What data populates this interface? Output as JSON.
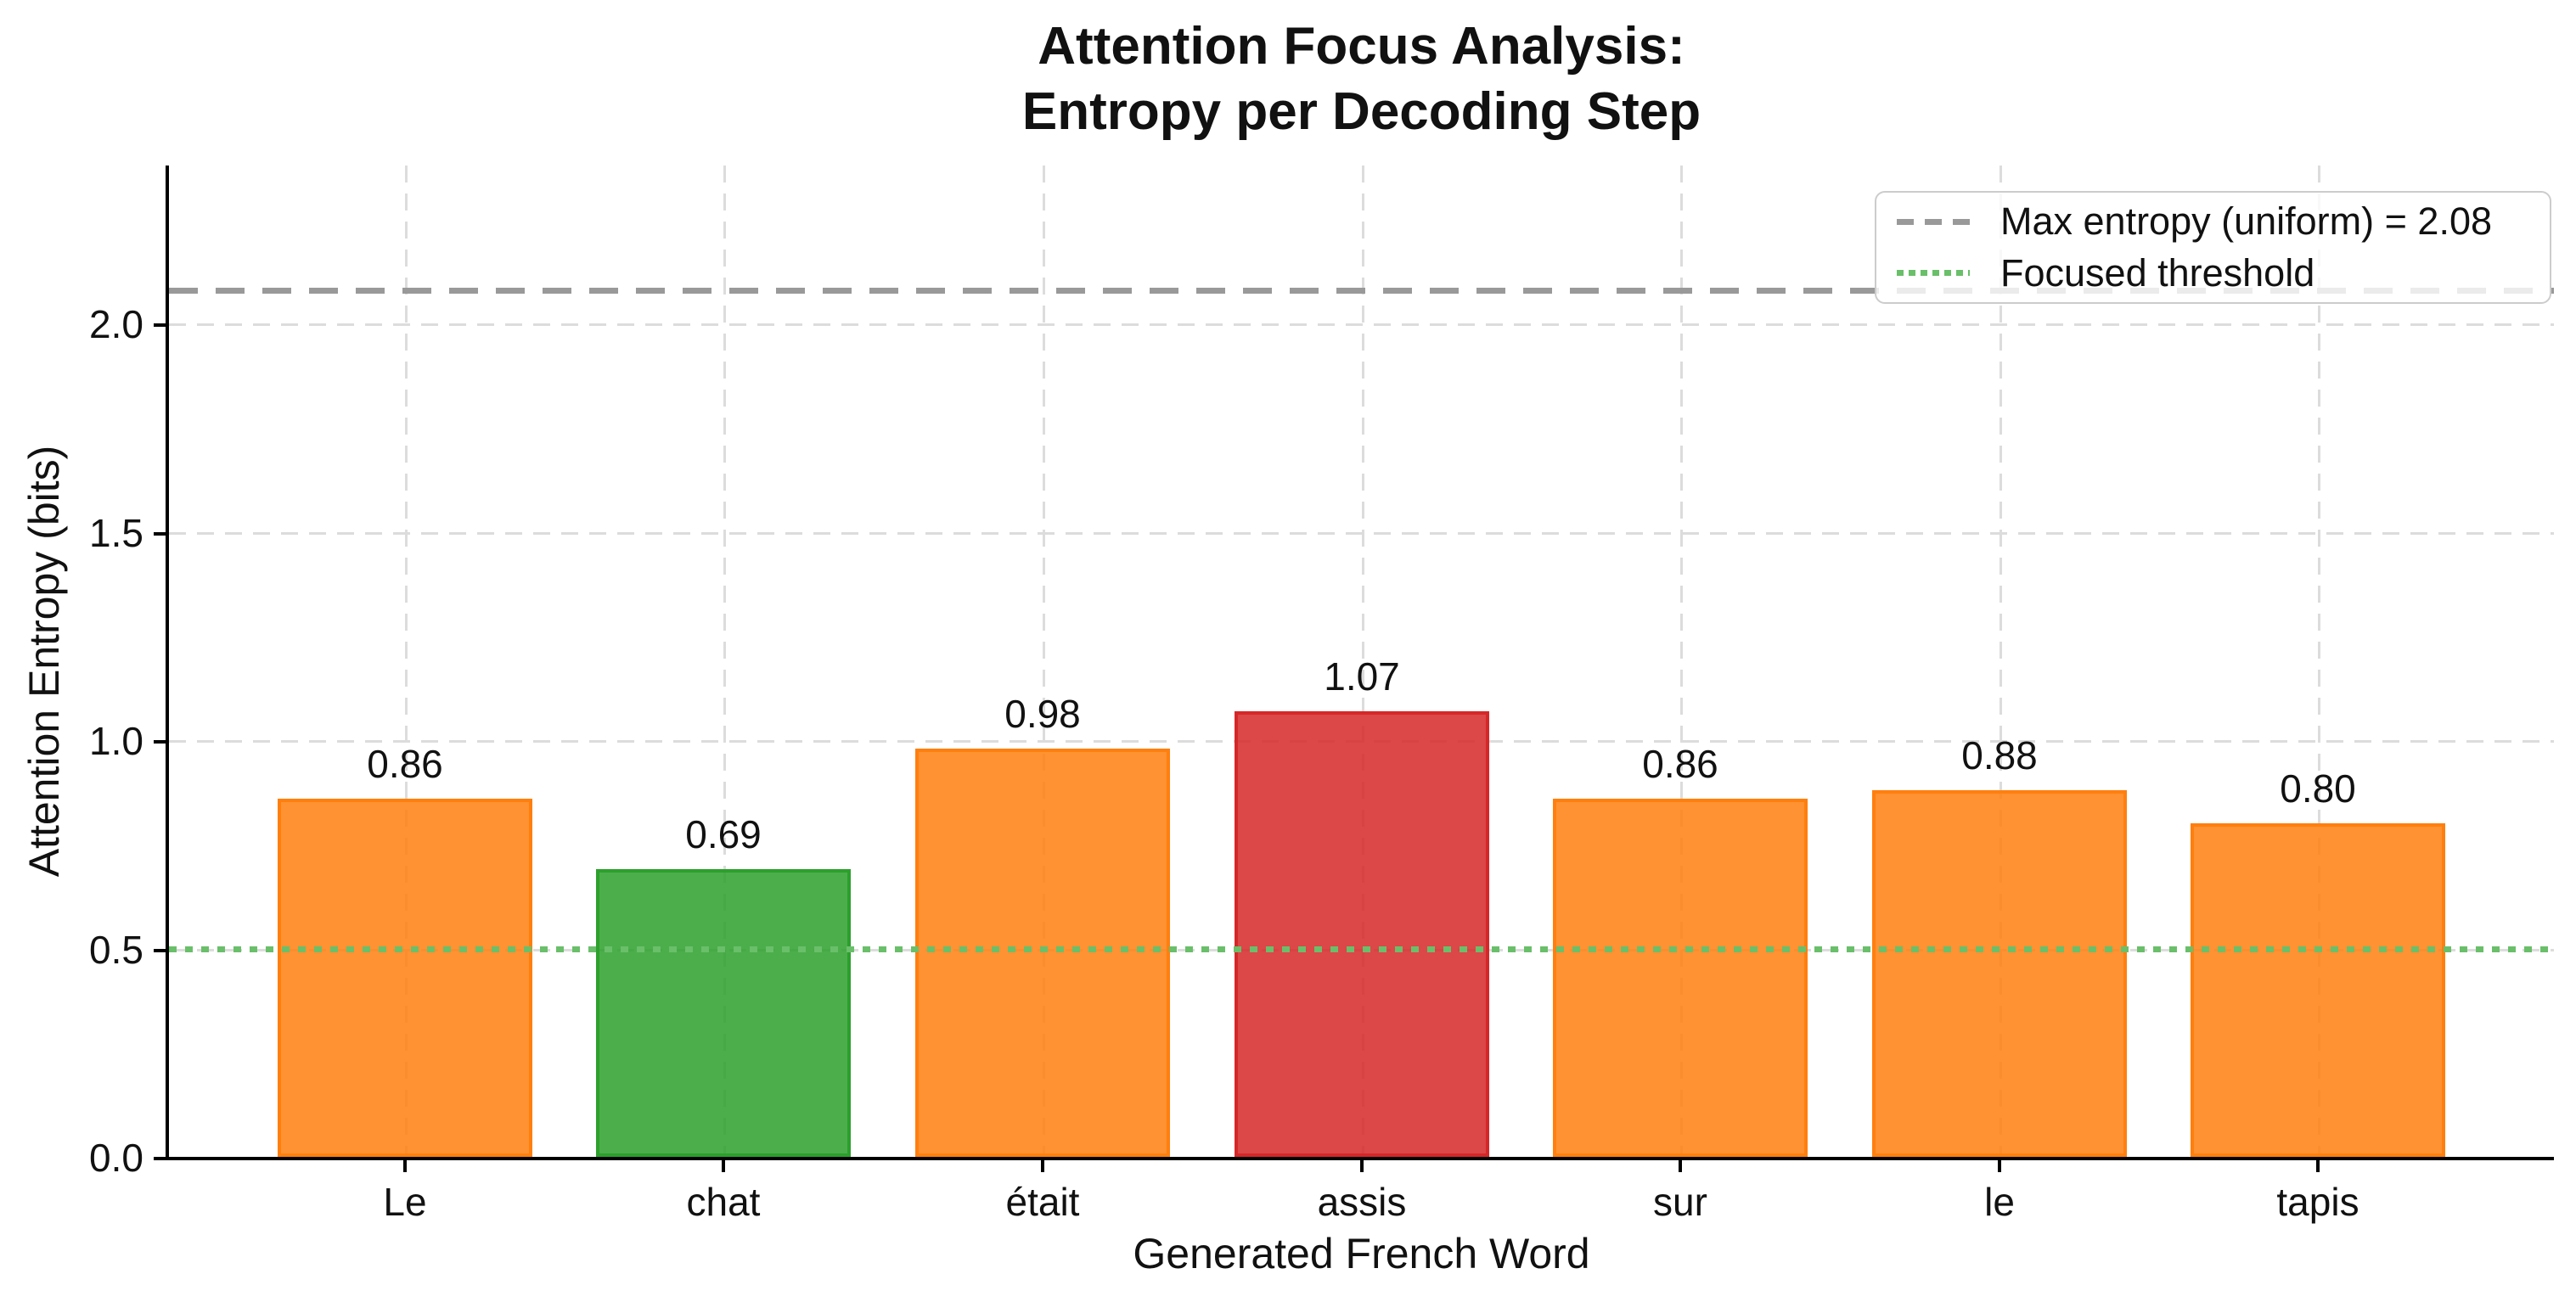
{
  "chart_data": {
    "type": "bar",
    "title_lines": [
      "Attention Focus Analysis:",
      "Entropy per Decoding Step"
    ],
    "xlabel": "Generated French Word",
    "ylabel": "Attention Entropy (bits)",
    "categories": [
      "Le",
      "chat",
      "était",
      "assis",
      "sur",
      "le",
      "tapis"
    ],
    "values": [
      0.86,
      0.69,
      0.98,
      1.07,
      0.86,
      0.88,
      0.8
    ],
    "bar_labels": [
      "0.86",
      "0.69",
      "0.98",
      "1.07",
      "0.86",
      "0.88",
      "0.80"
    ],
    "bar_color_keys": [
      "orange",
      "green",
      "orange",
      "red",
      "orange",
      "orange",
      "orange"
    ],
    "yticks": [
      0.0,
      0.5,
      1.0,
      1.5,
      2.0
    ],
    "ytick_labels": [
      "0.0",
      "0.5",
      "1.0",
      "1.5",
      "2.0"
    ],
    "ylim": [
      0,
      2.38
    ],
    "grid": true,
    "reference_lines": [
      {
        "value": 2.08,
        "style": "dashed",
        "color_key": "max_line",
        "name": "max-entropy-line"
      },
      {
        "value": 0.5,
        "style": "dotted",
        "color_key": "threshold_line",
        "name": "threshold-line"
      }
    ],
    "legend": {
      "position": "upper right",
      "entries": [
        {
          "label": "Max entropy (uniform) = 2.08",
          "style": "dashed",
          "color_key": "max_line"
        },
        {
          "label": "Focused threshold",
          "style": "dotted",
          "color_key": "threshold_line"
        }
      ]
    },
    "colors": {
      "orange_fill": "rgba(255,127,14,0.85)",
      "orange_edge": "#ff7f0e",
      "green_fill": "rgba(44,160,44,0.85)",
      "green_edge": "#2ca02c",
      "red_fill": "rgba(214,39,40,0.85)",
      "red_edge": "#d62728",
      "max_line": "#999999",
      "threshold_line": "#6abf6a",
      "grid": "#dcdcdc",
      "title_text": "#111111"
    }
  }
}
